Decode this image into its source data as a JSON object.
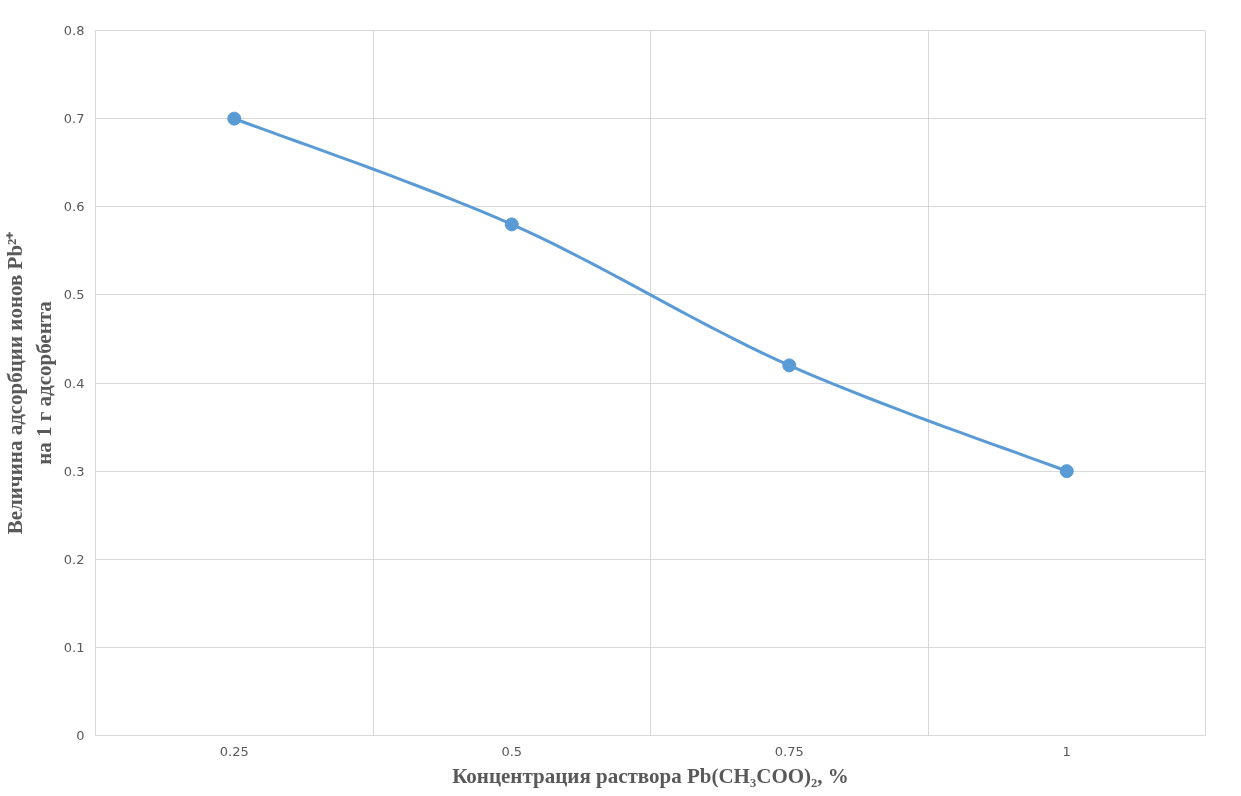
{
  "chart_data": {
    "type": "line",
    "xlabel": "Концентрация раствора Pb(CH₃COO)₂, %",
    "ylabel": "Величина адсорбции ионов Pb²⁺\nна 1 г адсорбента",
    "categories": [
      "0.25",
      "0.5",
      "0.75",
      "1"
    ],
    "series": [
      {
        "color": "#5b9bd5",
        "values": [
          0.7,
          0.58,
          0.42,
          0.3
        ]
      }
    ],
    "ylim": [
      0,
      0.8
    ],
    "yticks": [
      0,
      0.1,
      0.2,
      0.3,
      0.4,
      0.5,
      0.6,
      0.7,
      0.8
    ],
    "grid": true,
    "marker": "circle",
    "line_style": "solid"
  }
}
